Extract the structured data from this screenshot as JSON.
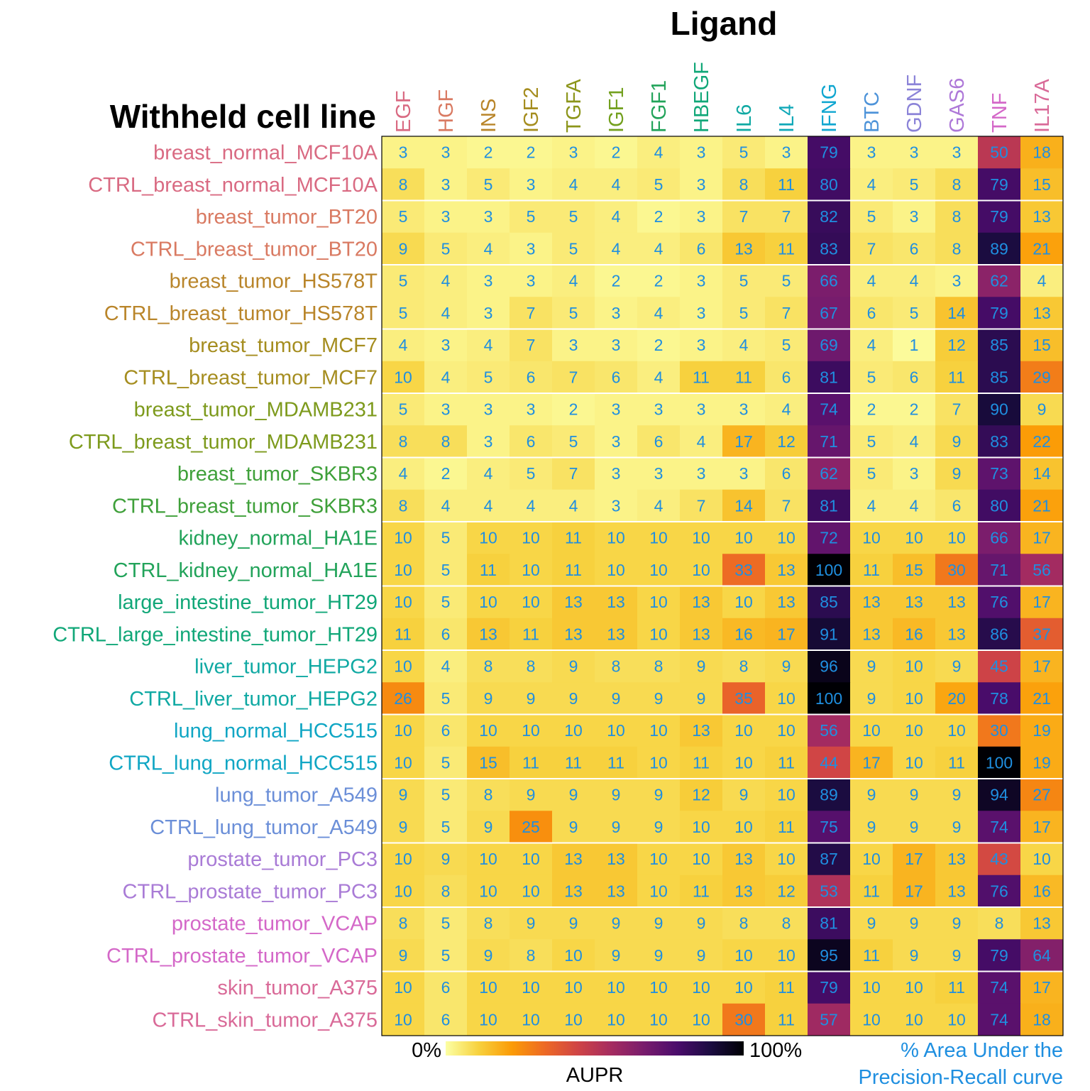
{
  "chart_data": {
    "type": "heatmap",
    "title": "Ligand",
    "row_axis_title": "Withheld cell line",
    "columns": [
      "EGF",
      "HGF",
      "INS",
      "IGF2",
      "TGFA",
      "IGF1",
      "FGF1",
      "HBEGF",
      "IL6",
      "IL4",
      "IFNG",
      "BTC",
      "GDNF",
      "GAS6",
      "TNF",
      "IL17A"
    ],
    "column_colors": [
      "#d96a82",
      "#d97a62",
      "#b9852a",
      "#a58d1f",
      "#8c951a",
      "#73a01e",
      "#22a35a",
      "#11a778",
      "#10a9a3",
      "#10a8b8",
      "#10a6d0",
      "#4d93d9",
      "#8b83d8",
      "#ae78d8",
      "#d468c8",
      "#d96a98"
    ],
    "rows": [
      "breast_normal_MCF10A",
      "CTRL_breast_normal_MCF10A",
      "breast_tumor_BT20",
      "CTRL_breast_tumor_BT20",
      "breast_tumor_HS578T",
      "CTRL_breast_tumor_HS578T",
      "breast_tumor_MCF7",
      "CTRL_breast_tumor_MCF7",
      "breast_tumor_MDAMB231",
      "CTRL_breast_tumor_MDAMB231",
      "breast_tumor_SKBR3",
      "CTRL_breast_tumor_SKBR3",
      "kidney_normal_HA1E",
      "CTRL_kidney_normal_HA1E",
      "large_intestine_tumor_HT29",
      "CTRL_large_intestine_tumor_HT29",
      "liver_tumor_HEPG2",
      "CTRL_liver_tumor_HEPG2",
      "lung_normal_HCC515",
      "CTRL_lung_normal_HCC515",
      "lung_tumor_A549",
      "CTRL_lung_tumor_A549",
      "prostate_tumor_PC3",
      "CTRL_prostate_tumor_PC3",
      "prostate_tumor_VCAP",
      "CTRL_prostate_tumor_VCAP",
      "skin_tumor_A375",
      "CTRL_skin_tumor_A375"
    ],
    "row_colors": [
      "#d96a82",
      "#d96a82",
      "#d97a62",
      "#d97a62",
      "#b9852a",
      "#b9852a",
      "#a58d1f",
      "#a58d1f",
      "#7d9a1c",
      "#7d9a1c",
      "#3fa03a",
      "#3fa03a",
      "#22a35a",
      "#22a35a",
      "#11a778",
      "#11a778",
      "#10a9a3",
      "#10a9a3",
      "#10a6c4",
      "#10a6c4",
      "#6b8fd8",
      "#6b8fd8",
      "#a97bd6",
      "#a97bd6",
      "#d468c8",
      "#d468c8",
      "#d96a98",
      "#d96a98"
    ],
    "values": [
      [
        3,
        3,
        2,
        2,
        3,
        2,
        4,
        3,
        5,
        3,
        79,
        3,
        3,
        3,
        50,
        18
      ],
      [
        8,
        3,
        5,
        3,
        4,
        4,
        5,
        3,
        8,
        11,
        80,
        4,
        5,
        8,
        79,
        15
      ],
      [
        5,
        3,
        3,
        5,
        5,
        4,
        2,
        3,
        7,
        7,
        82,
        5,
        3,
        8,
        79,
        13
      ],
      [
        9,
        5,
        4,
        3,
        5,
        4,
        4,
        6,
        13,
        11,
        83,
        7,
        6,
        8,
        89,
        21
      ],
      [
        5,
        4,
        3,
        3,
        4,
        2,
        2,
        3,
        5,
        5,
        66,
        4,
        4,
        3,
        62,
        4
      ],
      [
        5,
        4,
        3,
        7,
        5,
        3,
        4,
        3,
        5,
        7,
        67,
        6,
        5,
        14,
        79,
        13
      ],
      [
        4,
        3,
        4,
        7,
        3,
        3,
        2,
        3,
        4,
        5,
        69,
        4,
        1,
        12,
        85,
        15
      ],
      [
        10,
        4,
        5,
        6,
        7,
        6,
        4,
        11,
        11,
        6,
        81,
        5,
        6,
        11,
        85,
        29
      ],
      [
        5,
        3,
        3,
        3,
        2,
        3,
        3,
        3,
        3,
        4,
        74,
        2,
        2,
        7,
        90,
        9
      ],
      [
        8,
        8,
        3,
        6,
        5,
        3,
        6,
        4,
        17,
        12,
        71,
        5,
        4,
        9,
        83,
        22
      ],
      [
        4,
        2,
        4,
        5,
        7,
        3,
        3,
        3,
        3,
        6,
        62,
        5,
        3,
        9,
        73,
        14
      ],
      [
        8,
        4,
        4,
        4,
        4,
        3,
        4,
        7,
        14,
        7,
        81,
        4,
        4,
        6,
        80,
        21
      ],
      [
        10,
        5,
        10,
        10,
        11,
        10,
        10,
        10,
        10,
        10,
        72,
        10,
        10,
        10,
        66,
        17
      ],
      [
        10,
        5,
        11,
        10,
        11,
        10,
        10,
        10,
        33,
        13,
        100,
        11,
        15,
        30,
        71,
        56
      ],
      [
        10,
        5,
        10,
        10,
        13,
        13,
        10,
        13,
        10,
        13,
        85,
        13,
        13,
        13,
        76,
        17
      ],
      [
        11,
        6,
        13,
        11,
        13,
        13,
        10,
        13,
        16,
        17,
        91,
        13,
        16,
        13,
        86,
        37
      ],
      [
        10,
        4,
        8,
        8,
        9,
        8,
        8,
        9,
        8,
        9,
        96,
        9,
        10,
        9,
        45,
        17
      ],
      [
        26,
        5,
        9,
        9,
        9,
        9,
        9,
        9,
        35,
        10,
        100,
        9,
        10,
        20,
        78,
        21
      ],
      [
        10,
        6,
        10,
        10,
        10,
        10,
        10,
        13,
        10,
        10,
        56,
        10,
        10,
        10,
        30,
        19
      ],
      [
        10,
        5,
        15,
        11,
        11,
        11,
        10,
        11,
        10,
        11,
        44,
        17,
        10,
        11,
        100,
        19
      ],
      [
        9,
        5,
        8,
        9,
        9,
        9,
        9,
        12,
        9,
        10,
        89,
        9,
        9,
        9,
        94,
        27
      ],
      [
        9,
        5,
        9,
        25,
        9,
        9,
        9,
        10,
        10,
        11,
        75,
        9,
        9,
        9,
        74,
        17
      ],
      [
        10,
        9,
        10,
        10,
        13,
        13,
        10,
        10,
        13,
        10,
        87,
        10,
        17,
        13,
        43,
        10
      ],
      [
        10,
        8,
        10,
        10,
        13,
        13,
        10,
        11,
        13,
        12,
        53,
        11,
        17,
        13,
        76,
        16
      ],
      [
        8,
        5,
        8,
        9,
        9,
        9,
        9,
        9,
        8,
        8,
        81,
        9,
        9,
        9,
        8,
        13
      ],
      [
        9,
        5,
        9,
        8,
        10,
        9,
        9,
        9,
        10,
        10,
        95,
        11,
        9,
        9,
        79,
        64
      ],
      [
        10,
        6,
        10,
        10,
        10,
        10,
        10,
        10,
        10,
        11,
        79,
        10,
        10,
        11,
        74,
        17
      ],
      [
        10,
        6,
        10,
        10,
        10,
        10,
        10,
        10,
        30,
        11,
        57,
        10,
        10,
        10,
        74,
        18
      ]
    ],
    "value_range": [
      0,
      100
    ],
    "colorscale": "inferno-reversed",
    "colorscale_stops": [
      "#fcffa4",
      "#f7d13d",
      "#fb9b06",
      "#ed6925",
      "#cf4446",
      "#a52c60",
      "#781c6d",
      "#4a0c6b",
      "#1b0c41",
      "#000004"
    ],
    "cell_label_color": "#1f8fe0",
    "legend": {
      "title": "AUPR",
      "min_label": "0%",
      "max_label": "100%",
      "note_line1": "% Area Under the",
      "note_line2": "Precision-Recall curve",
      "placement": "bottom"
    }
  }
}
